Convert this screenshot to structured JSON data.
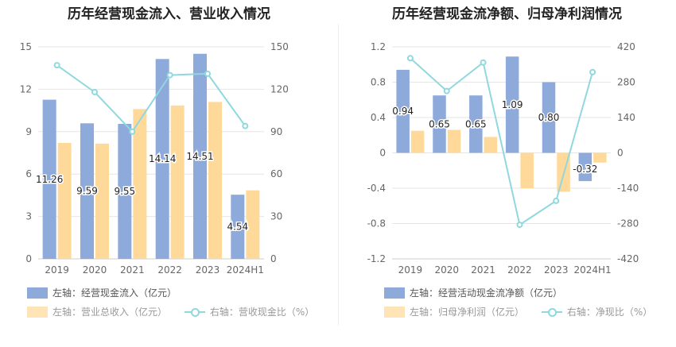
{
  "colors": {
    "bar_primary": "#8eaadb",
    "bar_secondary": "#ffd99a",
    "line": "#8fd8de"
  },
  "chart_data": [
    {
      "type": "bar",
      "title": "历年经营现金流入、营业收入情况",
      "categories": [
        "2019",
        "2020",
        "2021",
        "2022",
        "2023",
        "2024H1"
      ],
      "y_left": {
        "min": 0,
        "max": 15,
        "ticks": [
          0,
          3,
          6,
          9,
          12,
          15
        ]
      },
      "y_right": {
        "min": 0,
        "max": 150,
        "ticks": [
          0,
          30,
          60,
          90,
          120,
          150
        ]
      },
      "series": [
        {
          "name": "左轴：经营现金流入（亿元）",
          "axis": "left",
          "kind": "bar",
          "values": [
            11.26,
            9.59,
            9.55,
            14.14,
            14.51,
            4.54
          ],
          "labels": [
            "11.26",
            "9.59",
            "9.55",
            "14.14",
            "14.51",
            "4.54"
          ]
        },
        {
          "name": "左轴：营业总收入（亿元）",
          "axis": "left",
          "kind": "bar",
          "values": [
            8.2,
            8.15,
            10.6,
            10.85,
            11.1,
            4.85
          ]
        },
        {
          "name": "右轴：营收现金比（%）",
          "axis": "right",
          "kind": "line",
          "values": [
            137,
            118,
            90,
            130,
            131,
            94
          ]
        }
      ],
      "legend": [
        "左轴：经营现金流入（亿元）",
        "左轴：营业总收入（亿元）",
        "右轴：营收现金比（%）"
      ]
    },
    {
      "type": "bar",
      "title": "历年经营现金流净额、归母净利润情况",
      "categories": [
        "2019",
        "2020",
        "2021",
        "2022",
        "2023",
        "2024H1"
      ],
      "y_left": {
        "min": -1.2,
        "max": 1.2,
        "ticks": [
          -1.2,
          -0.8,
          -0.4,
          0,
          0.4,
          0.8,
          1.2
        ]
      },
      "y_right": {
        "min": -420,
        "max": 420,
        "ticks": [
          -420,
          -280,
          -140,
          0,
          140,
          280,
          420
        ]
      },
      "series": [
        {
          "name": "左轴：经营活动现金流净额（亿元）",
          "axis": "left",
          "kind": "bar",
          "values": [
            0.94,
            0.65,
            0.65,
            1.09,
            0.8,
            -0.32
          ],
          "labels": [
            "0.94",
            "0.65",
            "0.65",
            "1.09",
            "0.80",
            "-0.32"
          ]
        },
        {
          "name": "左轴：归母净利润（亿元）",
          "axis": "left",
          "kind": "bar",
          "values": [
            0.25,
            0.26,
            0.18,
            -0.4,
            -0.44,
            -0.11
          ]
        },
        {
          "name": "右轴：净现比（%）",
          "axis": "right",
          "kind": "line",
          "values": [
            375,
            245,
            358,
            -285,
            -190,
            320
          ]
        }
      ],
      "legend": [
        "左轴：经营活动现金流净额（亿元）",
        "左轴：归母净利润（亿元）",
        "右轴：净现比（%）"
      ]
    }
  ]
}
